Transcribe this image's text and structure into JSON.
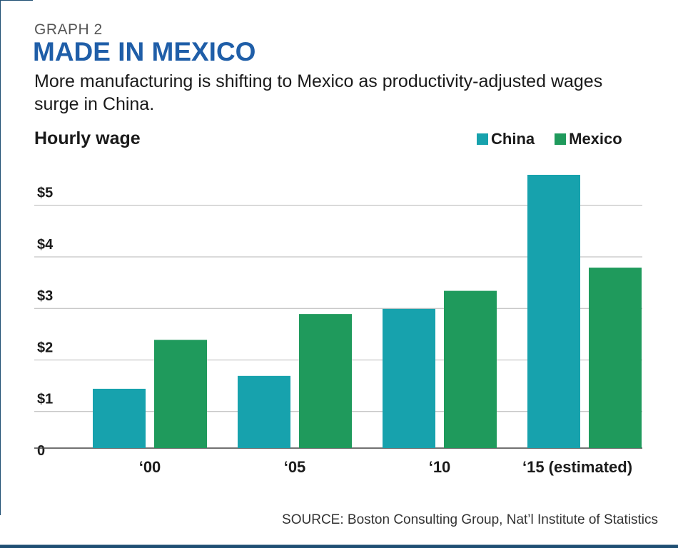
{
  "header": {
    "graph_number": "GRAPH 2",
    "title": "MADE IN MEXICO",
    "subtitle": "More manufacturing is shifting to Mexico as productivity-adjusted wages surge in China."
  },
  "chart_data": {
    "type": "bar",
    "ylabel": "Hourly wage",
    "categories": [
      "‘00",
      "‘05",
      "‘10",
      "‘15 (estimated)"
    ],
    "series": [
      {
        "name": "China",
        "color": "#17a2ad",
        "values": [
          1.15,
          1.4,
          2.7,
          5.3
        ]
      },
      {
        "name": "Mexico",
        "color": "#1f9a5c",
        "values": [
          2.1,
          2.6,
          3.05,
          3.5
        ]
      }
    ],
    "ylim": [
      0,
      5.3
    ],
    "yticks": [
      {
        "value": 0,
        "label": "0"
      },
      {
        "value": 1,
        "label": "$1"
      },
      {
        "value": 2,
        "label": "$2"
      },
      {
        "value": 3,
        "label": "$3"
      },
      {
        "value": 4,
        "label": "$4"
      },
      {
        "value": 5,
        "label": "$5"
      }
    ],
    "grid": true,
    "legend_position": "top-right"
  },
  "footer": {
    "source": "SOURCE: Boston Consulting Group, Nat’l Institute of Statistics"
  },
  "colors": {
    "title": "#1f5ea8",
    "frame": "#1f4f73",
    "grid": "#b5b5b5",
    "axis": "#444444"
  }
}
